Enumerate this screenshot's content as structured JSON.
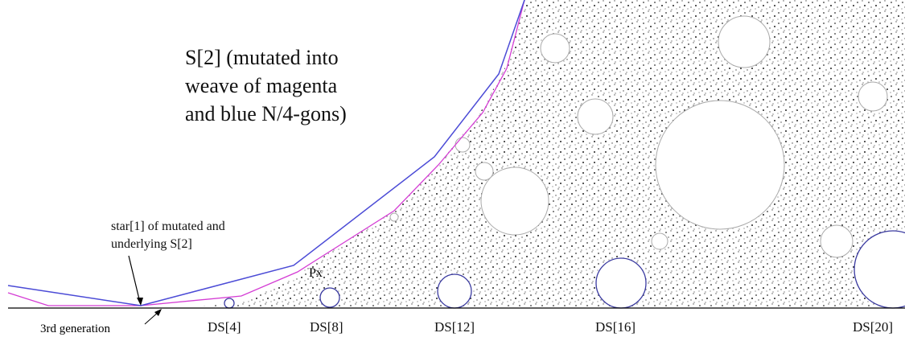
{
  "annotations": {
    "s2": [
      "S[2] (mutated into",
      "weave of magenta",
      "and blue N/4-gons)"
    ],
    "star": [
      "star[1] of mutated and",
      "underlying S[2]"
    ],
    "px": "Px",
    "generation": "3rd generation"
  },
  "discs": [
    "DS[4]",
    "DS[8]",
    "DS[12]",
    "DS[16]",
    "DS[20]"
  ]
}
